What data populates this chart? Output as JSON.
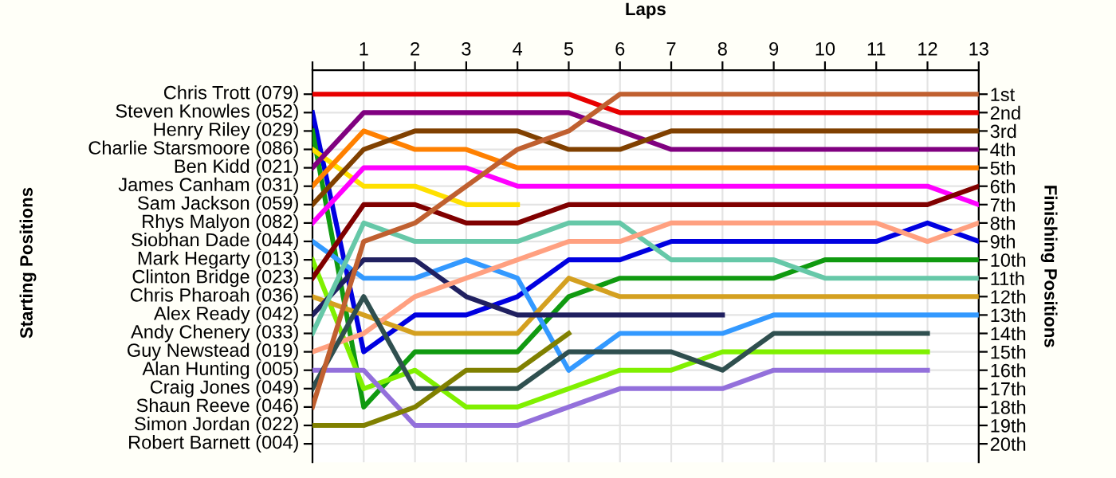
{
  "chart_data": {
    "type": "line",
    "xlabel": "Laps",
    "ylabel": "Finishing Positions",
    "grid": true,
    "marker": "none",
    "line_style": "solid",
    "x": [
      0,
      1,
      2,
      3,
      4,
      5,
      6,
      7,
      8,
      9,
      10,
      11,
      12,
      13
    ],
    "xlim": [
      0,
      13
    ],
    "xticks": [
      {
        "value": 0,
        "label": null
      },
      1,
      2,
      3,
      4,
      5,
      6,
      7,
      8,
      9,
      10,
      11,
      12,
      13
    ],
    "ylim": [
      21,
      -0.3
    ],
    "yticks": [
      {
        "value": 1,
        "label": "1st"
      },
      {
        "value": 2,
        "label": "2nd"
      },
      {
        "value": 3,
        "label": "3rd"
      },
      {
        "value": 4,
        "label": "4th"
      },
      {
        "value": 5,
        "label": "5th"
      },
      {
        "value": 6,
        "label": "6th"
      },
      {
        "value": 7,
        "label": "7th"
      },
      {
        "value": 8,
        "label": "8th"
      },
      {
        "value": 9,
        "label": "9th"
      },
      {
        "value": 10,
        "label": "10th"
      },
      {
        "value": 11,
        "label": "11th"
      },
      {
        "value": 12,
        "label": "12th"
      },
      {
        "value": 13,
        "label": "13th"
      },
      {
        "value": 14,
        "label": "14th"
      },
      {
        "value": 15,
        "label": "15th"
      },
      {
        "value": 16,
        "label": "16th"
      },
      {
        "value": 17,
        "label": "17th"
      },
      {
        "value": 18,
        "label": "18th"
      },
      {
        "value": 19,
        "label": "19th"
      },
      {
        "value": 20,
        "label": "20th"
      }
    ],
    "annotations": [
      "Starting Positions",
      "Chris Trott (079)",
      "Steven Knowles (052)",
      "Henry Riley (029)",
      "Charlie Starsmoore (086)",
      "Ben Kidd (021)",
      "James Canham (031)",
      "Sam Jackson (059)",
      "Rhys Malyon (082)",
      "Siobhan Dade (044)",
      "Mark Hegarty (013)",
      "Clinton Bridge (023)",
      "Chris Pharoah (036)",
      "Alex Ready (042)",
      "Andy Chenery (033)",
      "Guy Newstead (019)",
      "Alan Hunting (005)",
      "Craig Jones (049)",
      "Shaun Reeve (046)",
      "Simon Jordan (022)",
      "Robert Barnett (004)"
    ],
    "series": [
      {
        "color": "#e80000",
        "values": [
          1,
          1,
          1,
          1,
          1,
          1,
          2,
          2,
          2,
          2,
          2,
          2,
          2,
          2
        ]
      },
      {
        "color": "#0000e0",
        "values": [
          2,
          15,
          13,
          13,
          12,
          10,
          10,
          9,
          9,
          9,
          9,
          9,
          8,
          9
        ]
      },
      {
        "color": "#109a10",
        "values": [
          3,
          18,
          15,
          15,
          15,
          12,
          11,
          11,
          11,
          11,
          10,
          10,
          10,
          10
        ]
      },
      {
        "color": "#ffe000",
        "values": [
          4,
          6,
          6,
          7,
          7,
          null,
          null,
          null,
          null,
          null,
          null,
          null,
          null,
          null
        ]
      },
      {
        "color": "#800080",
        "values": [
          5,
          2,
          2,
          2,
          2,
          2,
          3,
          4,
          4,
          4,
          4,
          4,
          4,
          4
        ]
      },
      {
        "color": "#ff8000",
        "values": [
          6,
          3,
          4,
          4,
          5,
          5,
          5,
          5,
          5,
          5,
          5,
          5,
          5,
          5
        ]
      },
      {
        "color": "#804000",
        "values": [
          7,
          4,
          3,
          3,
          3,
          4,
          4,
          3,
          3,
          3,
          3,
          3,
          3,
          3
        ]
      },
      {
        "color": "#ff00ff",
        "values": [
          8,
          5,
          5,
          5,
          6,
          6,
          6,
          6,
          6,
          6,
          6,
          6,
          6,
          7
        ]
      },
      {
        "color": "#3399ff",
        "values": [
          9,
          11,
          11,
          10,
          11,
          16,
          14,
          14,
          14,
          13,
          13,
          13,
          13,
          13
        ]
      },
      {
        "color": "#80f000",
        "values": [
          10,
          17,
          16,
          18,
          18,
          17,
          16,
          16,
          15,
          15,
          15,
          15,
          15,
          null
        ]
      },
      {
        "color": "#800000",
        "values": [
          11,
          7,
          7,
          8,
          8,
          7,
          7,
          7,
          7,
          7,
          7,
          7,
          7,
          6
        ]
      },
      {
        "color": "#d4a020",
        "values": [
          12,
          13,
          14,
          14,
          14,
          11,
          12,
          12,
          12,
          12,
          12,
          12,
          12,
          12
        ]
      },
      {
        "color": "#202060",
        "values": [
          13,
          10,
          10,
          12,
          13,
          13,
          13,
          13,
          13,
          null,
          null,
          null,
          null,
          null
        ]
      },
      {
        "color": "#66c8a8",
        "values": [
          14,
          8,
          9,
          9,
          9,
          8,
          8,
          10,
          10,
          10,
          11,
          11,
          11,
          11
        ]
      },
      {
        "color": "#ffa080",
        "values": [
          15,
          14,
          12,
          11,
          10,
          9,
          9,
          8,
          8,
          8,
          8,
          8,
          9,
          8
        ]
      },
      {
        "color": "#9370db",
        "values": [
          16,
          16,
          19,
          19,
          19,
          18,
          17,
          17,
          17,
          16,
          16,
          16,
          16,
          null
        ]
      },
      {
        "color": "#2f4f4f",
        "values": [
          17,
          12,
          17,
          17,
          17,
          15,
          15,
          15,
          16,
          14,
          14,
          14,
          14,
          null
        ]
      },
      {
        "color": "#c06030",
        "values": [
          18,
          9,
          8,
          6,
          4,
          3,
          1,
          1,
          1,
          1,
          1,
          1,
          1,
          1
        ]
      },
      {
        "color": "#808000",
        "values": [
          19,
          19,
          18,
          16,
          16,
          14,
          null,
          null,
          null,
          null,
          null,
          null,
          null,
          null
        ]
      }
    ]
  }
}
